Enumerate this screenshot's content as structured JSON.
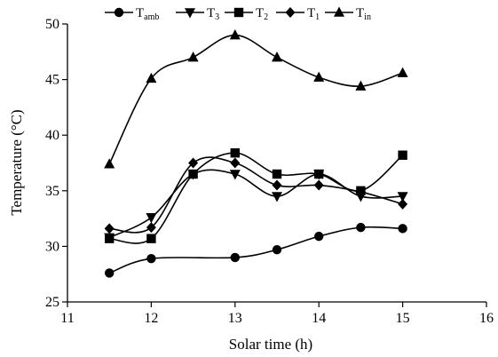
{
  "chart_data": {
    "type": "line",
    "xlabel": "Solar time (h)",
    "ylabel": "Temperature (°C)",
    "xlim": [
      11,
      16
    ],
    "ylim": [
      25,
      50
    ],
    "x_ticks": [
      "11",
      "12",
      "13",
      "14",
      "15",
      "16"
    ],
    "y_ticks": [
      "25",
      "30",
      "35",
      "40",
      "45",
      "50"
    ],
    "grid": false,
    "legend_position": "top",
    "x": [
      11.5,
      12,
      12.5,
      13,
      13.5,
      14,
      14.5,
      15
    ],
    "series": [
      {
        "name": "amb",
        "label_main": "T",
        "label_sub": "amb",
        "marker": "circle",
        "values": [
          27.6,
          28.9,
          null,
          29.0,
          29.7,
          30.9,
          31.7,
          31.6
        ]
      },
      {
        "name": "3",
        "label_main": "T",
        "label_sub": "3",
        "marker": "triangle-down",
        "values": [
          30.8,
          32.6,
          36.5,
          36.5,
          34.5,
          36.5,
          34.5,
          34.5
        ]
      },
      {
        "name": "2",
        "label_main": "T",
        "label_sub": "2",
        "marker": "square",
        "values": [
          30.7,
          30.7,
          36.5,
          38.4,
          36.5,
          36.5,
          35.0,
          38.2
        ]
      },
      {
        "name": "1",
        "label_main": "T",
        "label_sub": "1",
        "marker": "diamond",
        "values": [
          31.6,
          31.7,
          37.5,
          37.5,
          35.5,
          35.5,
          34.9,
          33.8
        ]
      },
      {
        "name": "in",
        "label_main": "T",
        "label_sub": "in",
        "marker": "triangle-up",
        "values": [
          37.4,
          45.1,
          47.0,
          49.0,
          47.0,
          45.2,
          44.4,
          45.6
        ]
      }
    ]
  }
}
